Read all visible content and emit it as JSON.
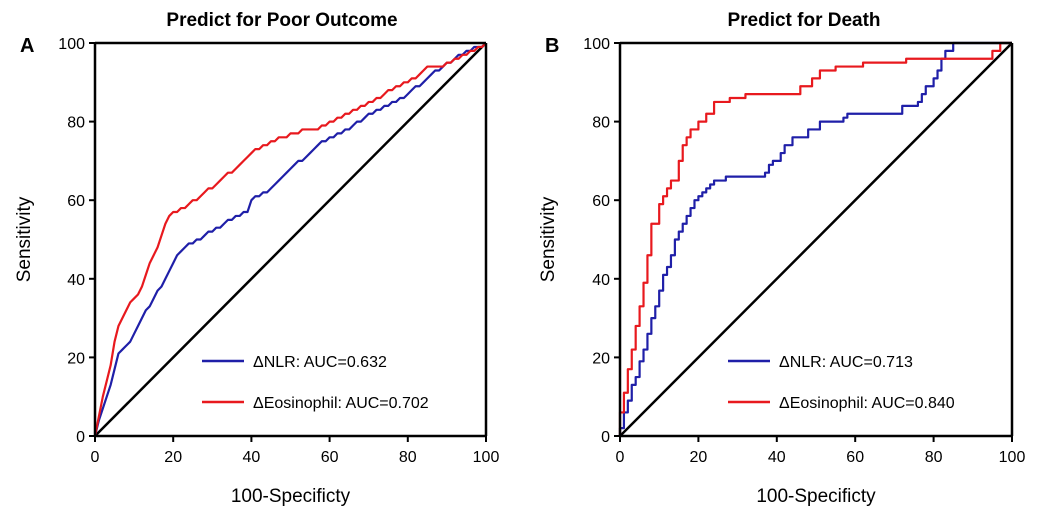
{
  "chart_data": [
    {
      "type": "line",
      "panel_label": "A",
      "title": "Predict for Poor Outcome",
      "xlabel": "100-Specificty",
      "ylabel": "Sensitivity",
      "xlim": [
        0,
        100
      ],
      "ylim": [
        0,
        100
      ],
      "xticks": [
        0,
        20,
        40,
        60,
        80,
        100
      ],
      "yticks": [
        0,
        20,
        40,
        60,
        80,
        100
      ],
      "tick_labels": [
        "0",
        "20",
        "40",
        "60",
        "80",
        "100"
      ],
      "grid": false,
      "legend_position": "bottom-right",
      "reference_line": {
        "x": [
          0,
          100
        ],
        "y": [
          0,
          100
        ],
        "color": "#000000"
      },
      "series": [
        {
          "name": "ΔNLR: AUC=0.632",
          "color": "#1f1fa8",
          "x": [
            0,
            1,
            2,
            3,
            4,
            5,
            6,
            7,
            8,
            9,
            10,
            11,
            12,
            13,
            14,
            15,
            16,
            17,
            18,
            19,
            20,
            21,
            22,
            23,
            24,
            25,
            26,
            27,
            28,
            29,
            30,
            31,
            32,
            33,
            34,
            35,
            36,
            37,
            38,
            39,
            40,
            41,
            42,
            43,
            44,
            45,
            46,
            47,
            48,
            49,
            50,
            51,
            52,
            53,
            54,
            55,
            56,
            57,
            58,
            59,
            60,
            61,
            62,
            63,
            64,
            65,
            66,
            67,
            68,
            69,
            70,
            71,
            72,
            73,
            74,
            75,
            76,
            77,
            78,
            79,
            80,
            81,
            82,
            83,
            84,
            85,
            86,
            87,
            88,
            89,
            90,
            91,
            92,
            93,
            94,
            95,
            96,
            97,
            98,
            99,
            100
          ],
          "y": [
            0,
            4,
            7,
            10,
            13,
            17,
            21,
            22,
            23,
            24,
            26,
            28,
            30,
            32,
            33,
            35,
            37,
            38,
            40,
            42,
            44,
            46,
            47,
            48,
            49,
            49,
            50,
            50,
            51,
            52,
            52,
            53,
            53,
            54,
            55,
            55,
            56,
            56,
            57,
            57,
            60,
            61,
            61,
            62,
            62,
            63,
            64,
            65,
            66,
            67,
            68,
            69,
            70,
            70,
            71,
            72,
            73,
            74,
            75,
            75,
            76,
            76,
            77,
            77,
            78,
            78,
            79,
            80,
            80,
            81,
            82,
            82,
            83,
            83,
            84,
            84,
            85,
            85,
            86,
            86,
            87,
            88,
            89,
            89,
            90,
            91,
            92,
            93,
            93,
            94,
            95,
            95,
            96,
            97,
            97,
            98,
            98,
            99,
            99,
            99,
            100
          ]
        },
        {
          "name": "ΔEosinophil: AUC=0.702",
          "color": "#e8191e",
          "x": [
            0,
            1,
            2,
            3,
            4,
            5,
            6,
            7,
            8,
            9,
            10,
            11,
            12,
            13,
            14,
            15,
            16,
            17,
            18,
            19,
            20,
            21,
            22,
            23,
            24,
            25,
            26,
            27,
            28,
            29,
            30,
            31,
            32,
            33,
            34,
            35,
            36,
            37,
            38,
            39,
            40,
            41,
            42,
            43,
            44,
            45,
            46,
            47,
            48,
            49,
            50,
            51,
            52,
            53,
            54,
            55,
            56,
            57,
            58,
            59,
            60,
            61,
            62,
            63,
            64,
            65,
            66,
            67,
            68,
            69,
            70,
            71,
            72,
            73,
            74,
            75,
            76,
            77,
            78,
            79,
            80,
            81,
            82,
            83,
            84,
            85,
            86,
            87,
            88,
            89,
            90,
            91,
            92,
            93,
            94,
            95,
            96,
            97,
            98,
            99,
            100
          ],
          "y": [
            0,
            5,
            10,
            14,
            18,
            24,
            28,
            30,
            32,
            34,
            35,
            36,
            38,
            41,
            44,
            46,
            48,
            51,
            54,
            56,
            57,
            57,
            58,
            58,
            59,
            60,
            60,
            61,
            62,
            63,
            63,
            64,
            65,
            66,
            67,
            67,
            68,
            69,
            70,
            71,
            72,
            73,
            73,
            74,
            74,
            75,
            75,
            76,
            76,
            76,
            77,
            77,
            77,
            78,
            78,
            78,
            78,
            78,
            79,
            79,
            80,
            80,
            81,
            81,
            82,
            82,
            83,
            83,
            84,
            84,
            85,
            85,
            86,
            86,
            87,
            88,
            88,
            89,
            89,
            90,
            90,
            91,
            91,
            92,
            93,
            94,
            94,
            94,
            94,
            94,
            95,
            95,
            96,
            96,
            97,
            97,
            98,
            98,
            99,
            99,
            100
          ]
        }
      ]
    },
    {
      "type": "line",
      "panel_label": "B",
      "title": "Predict for Death",
      "xlabel": "100-Specificty",
      "ylabel": "Sensitivity",
      "xlim": [
        0,
        100
      ],
      "ylim": [
        0,
        100
      ],
      "xticks": [
        0,
        20,
        40,
        60,
        80,
        100
      ],
      "yticks": [
        0,
        20,
        40,
        60,
        80,
        100
      ],
      "tick_labels": [
        "0",
        "20",
        "40",
        "60",
        "80",
        "100"
      ],
      "grid": false,
      "legend_position": "bottom-right",
      "reference_line": {
        "x": [
          0,
          100
        ],
        "y": [
          0,
          100
        ],
        "color": "#000000"
      },
      "series": [
        {
          "name": "ΔNLR: AUC=0.713",
          "color": "#1f1fa8",
          "x": [
            0,
            0,
            1,
            1,
            2,
            2,
            3,
            3,
            4,
            4,
            5,
            5,
            6,
            6,
            7,
            7,
            8,
            8,
            9,
            9,
            10,
            10,
            11,
            11,
            12,
            12,
            13,
            13,
            14,
            14,
            15,
            15,
            16,
            16,
            17,
            17,
            18,
            18,
            19,
            19,
            20,
            20,
            21,
            21,
            22,
            22,
            23,
            23,
            24,
            24,
            25,
            25,
            27,
            27,
            37,
            37,
            38,
            38,
            39,
            39,
            41,
            41,
            42,
            42,
            44,
            44,
            48,
            48,
            51,
            51,
            57,
            57,
            58,
            58,
            72,
            72,
            76,
            76,
            77,
            77,
            78,
            78,
            80,
            80,
            81,
            81,
            82,
            82,
            83,
            83,
            85,
            85,
            100
          ],
          "y": [
            0,
            2,
            2,
            6,
            6,
            9,
            9,
            13,
            13,
            15,
            15,
            19,
            19,
            22,
            22,
            26,
            26,
            30,
            30,
            33,
            33,
            37,
            37,
            41,
            41,
            43,
            43,
            46,
            46,
            50,
            50,
            52,
            52,
            54,
            54,
            56,
            56,
            58,
            58,
            60,
            60,
            61,
            61,
            62,
            62,
            63,
            63,
            64,
            64,
            65,
            65,
            65,
            65,
            66,
            66,
            67,
            67,
            69,
            69,
            70,
            70,
            72,
            72,
            74,
            74,
            76,
            76,
            78,
            78,
            80,
            80,
            81,
            81,
            82,
            82,
            84,
            84,
            85,
            85,
            87,
            87,
            89,
            89,
            91,
            91,
            93,
            93,
            96,
            96,
            98,
            98,
            100,
            100
          ]
        },
        {
          "name": "ΔEosinophil: AUC=0.840",
          "color": "#e8191e",
          "x": [
            0,
            0,
            1,
            1,
            2,
            2,
            3,
            3,
            4,
            4,
            5,
            5,
            6,
            6,
            7,
            7,
            8,
            8,
            10,
            10,
            11,
            11,
            12,
            12,
            13,
            13,
            15,
            15,
            16,
            16,
            17,
            17,
            18,
            18,
            20,
            20,
            22,
            22,
            24,
            24,
            28,
            28,
            32,
            32,
            46,
            46,
            49,
            49,
            51,
            51,
            55,
            55,
            62,
            62,
            73,
            73,
            95,
            95,
            97,
            97,
            100
          ],
          "y": [
            0,
            6,
            6,
            11,
            11,
            17,
            17,
            22,
            22,
            28,
            28,
            33,
            33,
            39,
            39,
            46,
            46,
            54,
            54,
            59,
            59,
            61,
            61,
            63,
            63,
            65,
            65,
            70,
            70,
            74,
            74,
            76,
            76,
            78,
            78,
            80,
            80,
            82,
            82,
            85,
            85,
            86,
            86,
            87,
            87,
            89,
            89,
            91,
            91,
            93,
            93,
            94,
            94,
            95,
            95,
            96,
            96,
            98,
            98,
            100,
            100
          ]
        }
      ]
    }
  ]
}
